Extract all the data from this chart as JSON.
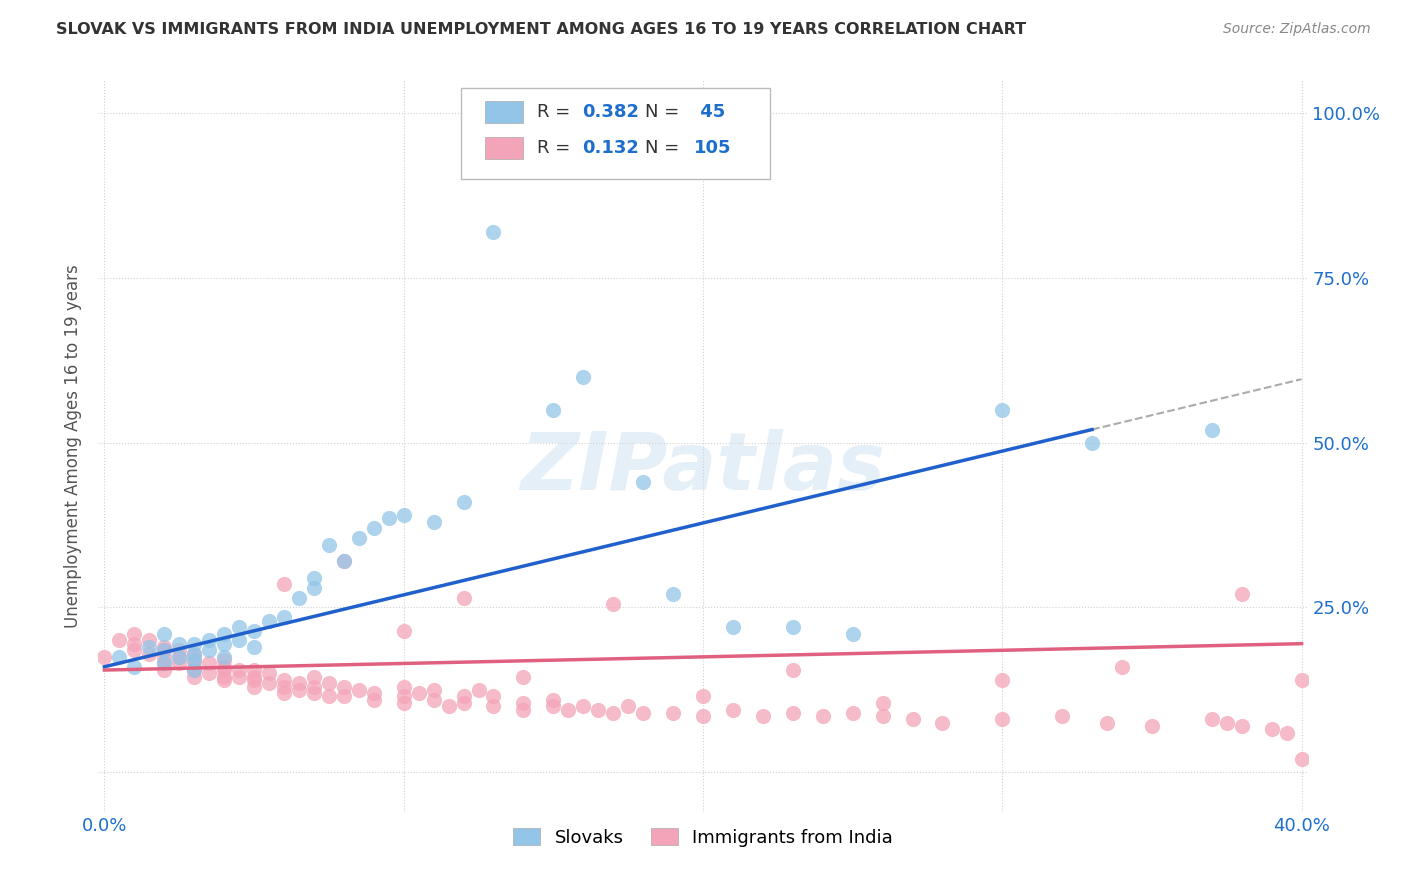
{
  "title": "SLOVAK VS IMMIGRANTS FROM INDIA UNEMPLOYMENT AMONG AGES 16 TO 19 YEARS CORRELATION CHART",
  "source": "Source: ZipAtlas.com",
  "ylabel": "Unemployment Among Ages 16 to 19 years",
  "xmin": 0.0,
  "xmax": 0.4,
  "ymin": -0.06,
  "ymax": 1.05,
  "yticks": [
    0.0,
    0.25,
    0.5,
    0.75,
    1.0
  ],
  "right_ytick_labels": [
    "",
    "25.0%",
    "50.0%",
    "75.0%",
    "100.0%"
  ],
  "xticks": [
    0.0,
    0.1,
    0.2,
    0.3,
    0.4
  ],
  "xtick_labels": [
    "0.0%",
    "",
    "",
    "",
    "40.0%"
  ],
  "slovak_color": "#92C5E8",
  "india_color": "#F4A4B8",
  "trend_slovak_color": "#2060CC",
  "trend_india_color": "#E06080",
  "R_slovak": 0.382,
  "N_slovak": 45,
  "R_india": 0.132,
  "N_india": 105,
  "legend_label_slovak": "Slovaks",
  "legend_label_india": "Immigrants from India",
  "watermark": "ZIPatlas",
  "background_color": "#FFFFFF",
  "grid_color": "#CCCCCC",
  "title_color": "#333333",
  "axis_label_color": "#1E6FCC",
  "slovak_scatter_x": [
    0.005,
    0.01,
    0.015,
    0.02,
    0.02,
    0.02,
    0.025,
    0.025,
    0.03,
    0.03,
    0.03,
    0.03,
    0.035,
    0.035,
    0.04,
    0.04,
    0.04,
    0.045,
    0.045,
    0.05,
    0.05,
    0.055,
    0.06,
    0.065,
    0.07,
    0.07,
    0.075,
    0.08,
    0.085,
    0.09,
    0.095,
    0.1,
    0.11,
    0.12,
    0.13,
    0.15,
    0.16,
    0.18,
    0.19,
    0.21,
    0.23,
    0.25,
    0.3,
    0.33,
    0.37
  ],
  "slovak_scatter_y": [
    0.175,
    0.16,
    0.19,
    0.185,
    0.21,
    0.165,
    0.175,
    0.195,
    0.18,
    0.155,
    0.195,
    0.17,
    0.2,
    0.185,
    0.195,
    0.175,
    0.21,
    0.22,
    0.2,
    0.215,
    0.19,
    0.23,
    0.235,
    0.265,
    0.295,
    0.28,
    0.345,
    0.32,
    0.355,
    0.37,
    0.385,
    0.39,
    0.38,
    0.41,
    0.82,
    0.55,
    0.6,
    0.44,
    0.27,
    0.22,
    0.22,
    0.21,
    0.55,
    0.5,
    0.52
  ],
  "india_scatter_x": [
    0.0,
    0.005,
    0.01,
    0.01,
    0.01,
    0.015,
    0.015,
    0.02,
    0.02,
    0.02,
    0.02,
    0.02,
    0.025,
    0.025,
    0.025,
    0.03,
    0.03,
    0.03,
    0.03,
    0.03,
    0.035,
    0.035,
    0.04,
    0.04,
    0.04,
    0.04,
    0.04,
    0.045,
    0.045,
    0.05,
    0.05,
    0.05,
    0.05,
    0.055,
    0.055,
    0.06,
    0.06,
    0.06,
    0.065,
    0.065,
    0.07,
    0.07,
    0.07,
    0.075,
    0.075,
    0.08,
    0.08,
    0.085,
    0.09,
    0.09,
    0.1,
    0.1,
    0.1,
    0.105,
    0.11,
    0.11,
    0.115,
    0.12,
    0.12,
    0.125,
    0.13,
    0.13,
    0.14,
    0.14,
    0.15,
    0.15,
    0.155,
    0.16,
    0.165,
    0.17,
    0.175,
    0.18,
    0.19,
    0.2,
    0.21,
    0.22,
    0.23,
    0.24,
    0.25,
    0.26,
    0.27,
    0.28,
    0.3,
    0.32,
    0.335,
    0.35,
    0.37,
    0.375,
    0.38,
    0.39,
    0.395,
    0.06,
    0.08,
    0.1,
    0.12,
    0.14,
    0.17,
    0.2,
    0.23,
    0.26,
    0.3,
    0.34,
    0.38,
    0.4,
    0.4
  ],
  "india_scatter_y": [
    0.175,
    0.2,
    0.195,
    0.21,
    0.185,
    0.18,
    0.2,
    0.165,
    0.185,
    0.175,
    0.19,
    0.155,
    0.175,
    0.165,
    0.185,
    0.155,
    0.145,
    0.17,
    0.16,
    0.18,
    0.15,
    0.165,
    0.145,
    0.16,
    0.155,
    0.17,
    0.14,
    0.155,
    0.145,
    0.14,
    0.155,
    0.13,
    0.145,
    0.135,
    0.15,
    0.13,
    0.14,
    0.12,
    0.135,
    0.125,
    0.13,
    0.145,
    0.12,
    0.135,
    0.115,
    0.13,
    0.115,
    0.125,
    0.12,
    0.11,
    0.115,
    0.13,
    0.105,
    0.12,
    0.11,
    0.125,
    0.1,
    0.115,
    0.105,
    0.125,
    0.1,
    0.115,
    0.105,
    0.095,
    0.11,
    0.1,
    0.095,
    0.1,
    0.095,
    0.09,
    0.1,
    0.09,
    0.09,
    0.085,
    0.095,
    0.085,
    0.09,
    0.085,
    0.09,
    0.085,
    0.08,
    0.075,
    0.08,
    0.085,
    0.075,
    0.07,
    0.08,
    0.075,
    0.07,
    0.065,
    0.06,
    0.285,
    0.32,
    0.215,
    0.265,
    0.145,
    0.255,
    0.115,
    0.155,
    0.105,
    0.14,
    0.16,
    0.27,
    0.14,
    0.02
  ]
}
